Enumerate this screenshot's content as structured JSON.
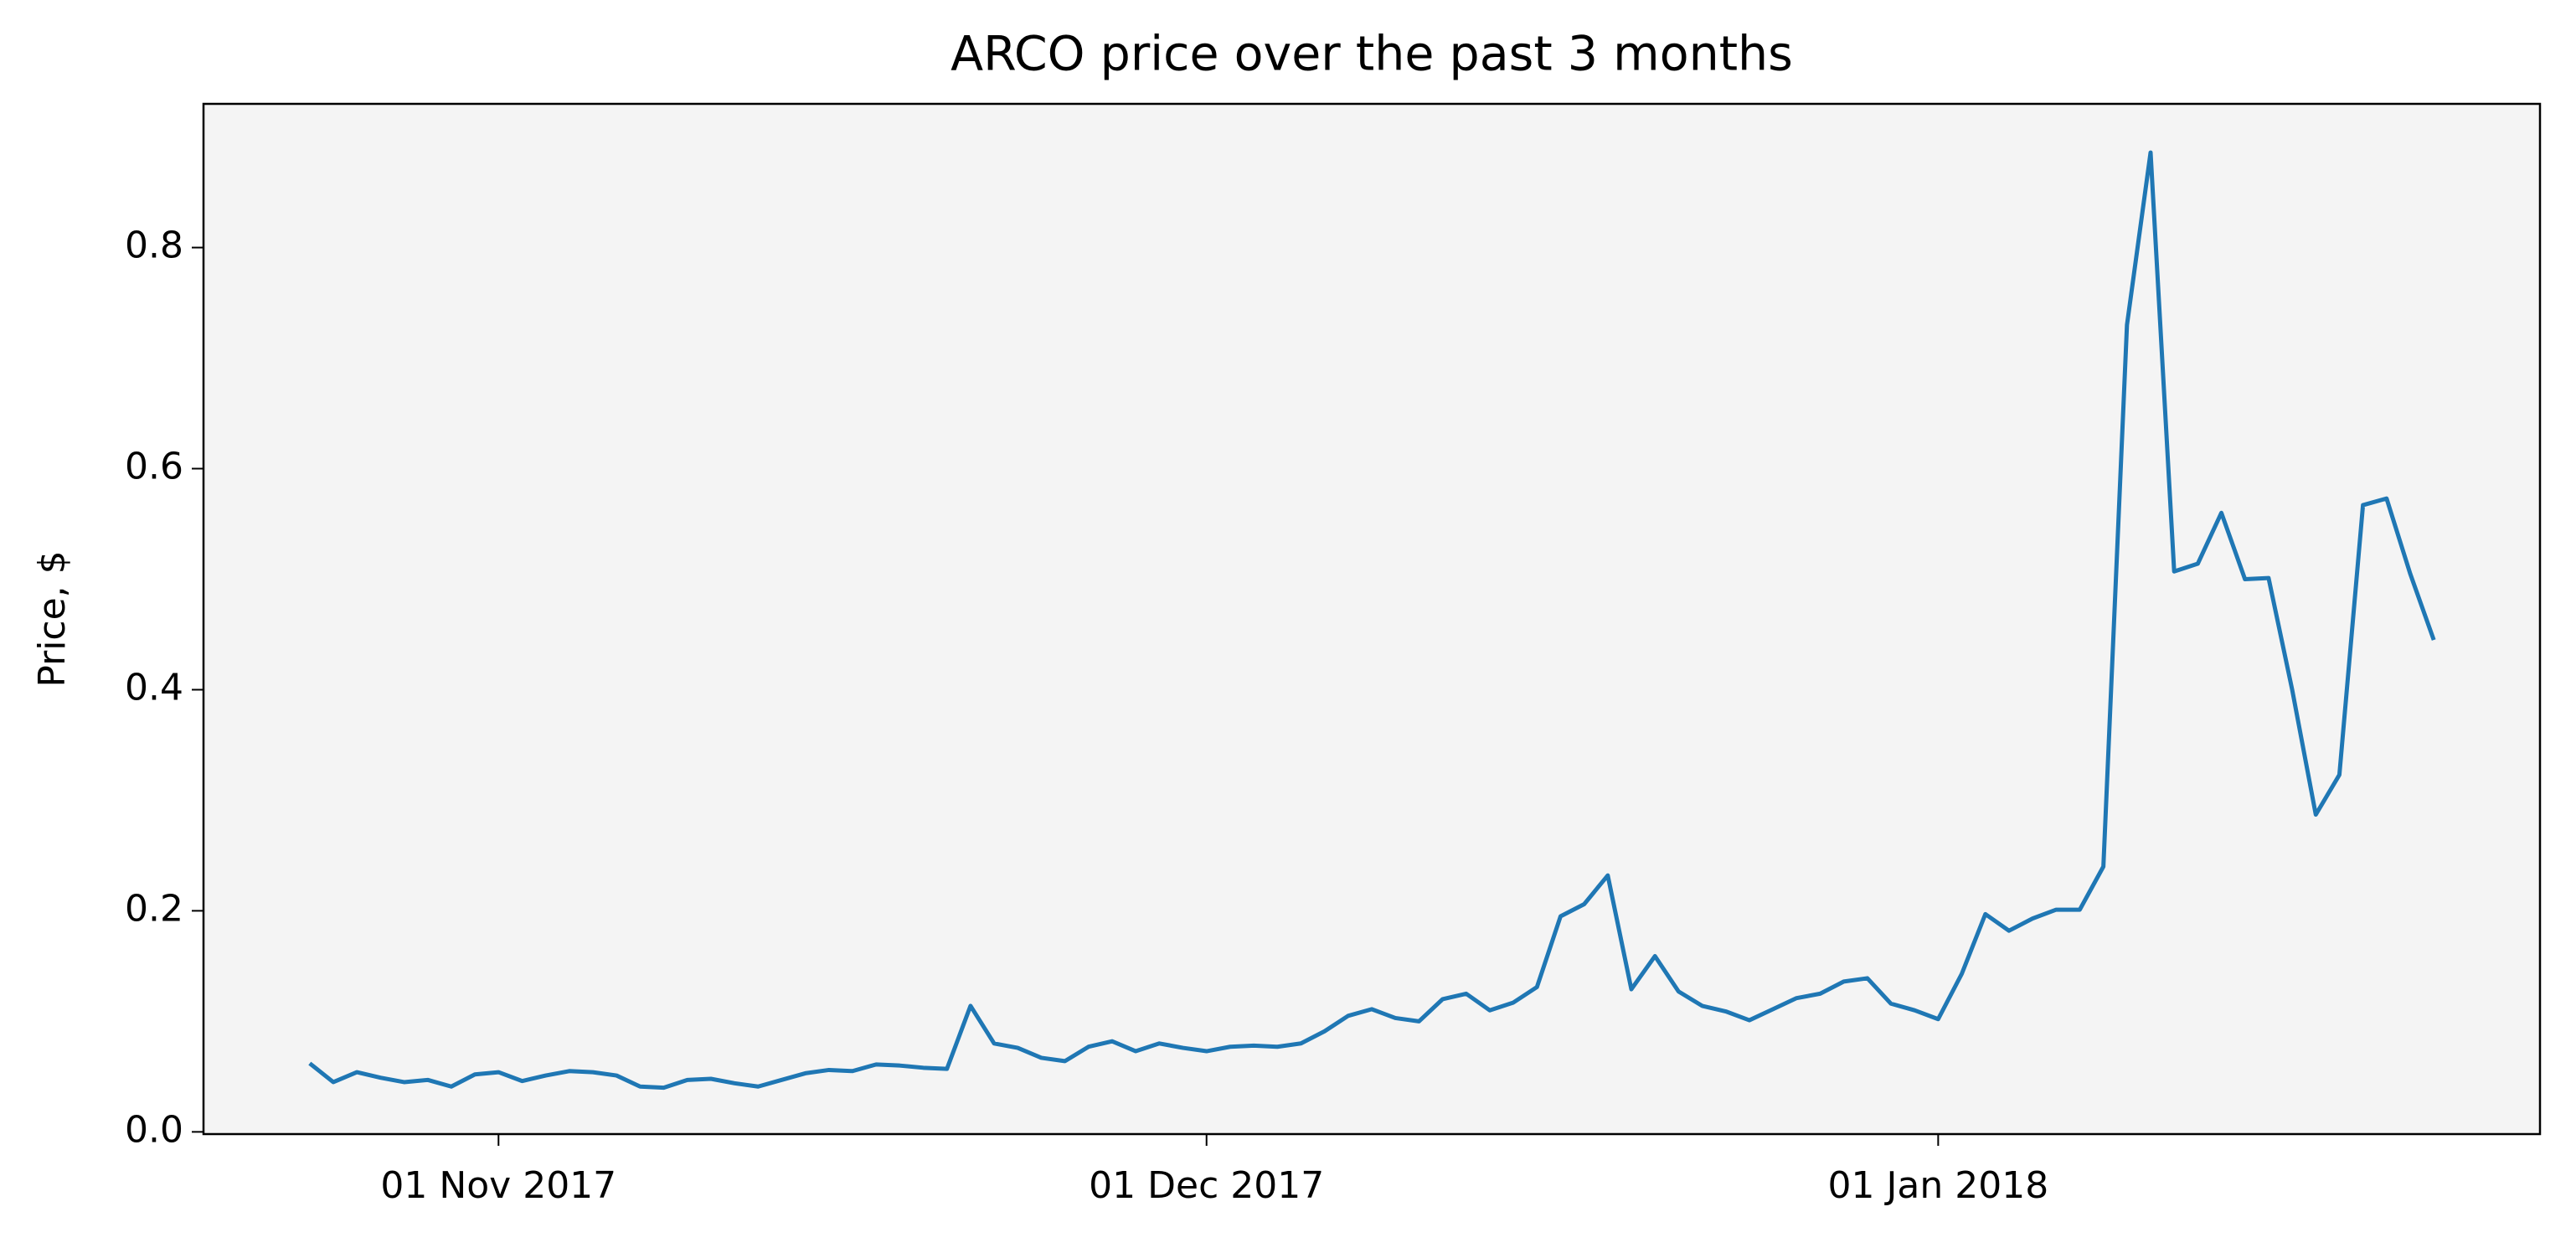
{
  "chart_data": {
    "type": "line",
    "title": "ARCO price over the past 3 months",
    "y_label": "Price, $",
    "x": [
      "2017-10-24",
      "2017-10-25",
      "2017-10-26",
      "2017-10-27",
      "2017-10-28",
      "2017-10-29",
      "2017-10-30",
      "2017-10-31",
      "2017-11-01",
      "2017-11-02",
      "2017-11-03",
      "2017-11-04",
      "2017-11-05",
      "2017-11-06",
      "2017-11-07",
      "2017-11-08",
      "2017-11-09",
      "2017-11-10",
      "2017-11-11",
      "2017-11-12",
      "2017-11-13",
      "2017-11-14",
      "2017-11-15",
      "2017-11-16",
      "2017-11-17",
      "2017-11-18",
      "2017-11-19",
      "2017-11-20",
      "2017-11-21",
      "2017-11-22",
      "2017-11-23",
      "2017-11-24",
      "2017-11-25",
      "2017-11-26",
      "2017-11-27",
      "2017-11-28",
      "2017-11-29",
      "2017-11-30",
      "2017-12-01",
      "2017-12-02",
      "2017-12-03",
      "2017-12-04",
      "2017-12-05",
      "2017-12-06",
      "2017-12-07",
      "2017-12-08",
      "2017-12-09",
      "2017-12-10",
      "2017-12-11",
      "2017-12-12",
      "2017-12-13",
      "2017-12-14",
      "2017-12-15",
      "2017-12-16",
      "2017-12-17",
      "2017-12-18",
      "2017-12-19",
      "2017-12-20",
      "2017-12-21",
      "2017-12-22",
      "2017-12-23",
      "2017-12-24",
      "2017-12-25",
      "2017-12-26",
      "2017-12-27",
      "2017-12-28",
      "2017-12-29",
      "2017-12-30",
      "2017-12-31",
      "2018-01-01",
      "2018-01-02",
      "2018-01-03",
      "2018-01-04",
      "2018-01-05",
      "2018-01-06",
      "2018-01-07",
      "2018-01-08",
      "2018-01-09",
      "2018-01-10",
      "2018-01-11",
      "2018-01-12",
      "2018-01-13",
      "2018-01-14",
      "2018-01-15",
      "2018-01-16",
      "2018-01-17",
      "2018-01-18",
      "2018-01-19",
      "2018-01-20",
      "2018-01-21",
      "2018-01-22"
    ],
    "series": [
      {
        "name": "ARCO",
        "color": "#1f77b4",
        "values": [
          0.062,
          0.045,
          0.054,
          0.049,
          0.045,
          0.047,
          0.041,
          0.052,
          0.054,
          0.046,
          0.051,
          0.055,
          0.054,
          0.051,
          0.041,
          0.04,
          0.047,
          0.048,
          0.044,
          0.041,
          0.047,
          0.053,
          0.056,
          0.055,
          0.061,
          0.06,
          0.058,
          0.057,
          0.114,
          0.08,
          0.076,
          0.067,
          0.064,
          0.077,
          0.082,
          0.073,
          0.08,
          0.076,
          0.073,
          0.077,
          0.078,
          0.077,
          0.08,
          0.091,
          0.105,
          0.111,
          0.103,
          0.1,
          0.12,
          0.125,
          0.11,
          0.117,
          0.131,
          0.195,
          0.206,
          0.232,
          0.129,
          0.159,
          0.127,
          0.114,
          0.109,
          0.101,
          0.111,
          0.121,
          0.125,
          0.136,
          0.139,
          0.116,
          0.11,
          0.102,
          0.143,
          0.197,
          0.182,
          0.193,
          0.201,
          0.201,
          0.24,
          0.73,
          0.886,
          0.507,
          0.514,
          0.56,
          0.5,
          0.501,
          0.4,
          0.287,
          0.323,
          0.567,
          0.573,
          0.505,
          0.445
        ]
      }
    ],
    "xlim": [
      "2017-10-19T12:00:00Z",
      "2018-01-26T12:00:00Z"
    ],
    "xticks": [
      {
        "value": "2017-11-01",
        "label": "01 Nov 2017"
      },
      {
        "value": "2017-12-01",
        "label": "01 Dec 2017"
      },
      {
        "value": "2018-01-01",
        "label": "01 Jan 2018"
      }
    ],
    "ylim": [
      -0.002,
      0.93
    ],
    "yticks": [
      {
        "value": 0,
        "label": "0.0"
      },
      0.2,
      0.4,
      0.6,
      0.8
    ],
    "grid": false
  }
}
